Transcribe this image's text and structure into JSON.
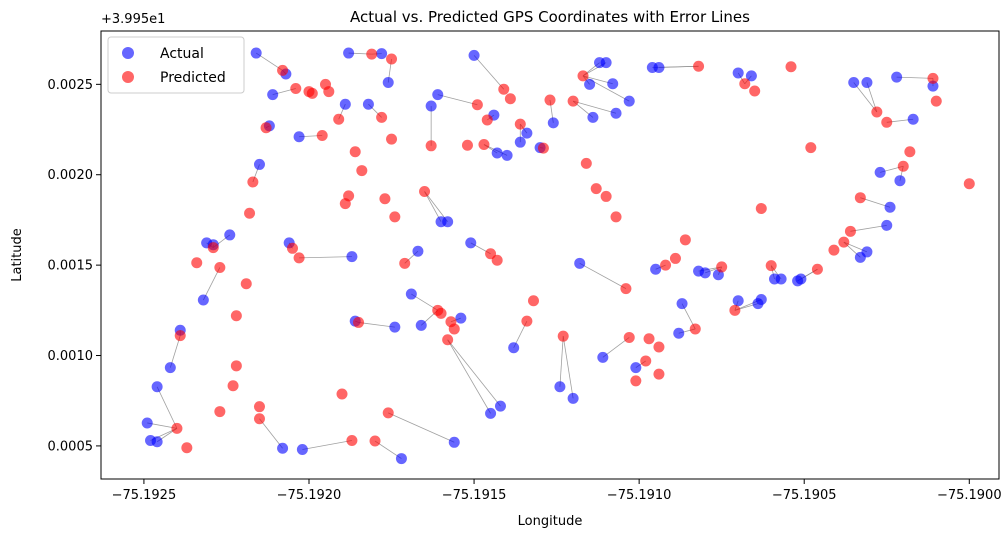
{
  "chart_data": {
    "type": "scatter",
    "title": "Actual vs. Predicted GPS Coordinates with Error Lines",
    "xlabel": "Longitude",
    "ylabel": "Latitude",
    "y_offset_text": "+3.995e1",
    "xlim": [
      -75.19263,
      -75.18991
    ],
    "ylim": [
      0.000317,
      0.002795
    ],
    "x_ticks": [
      -75.1925,
      -75.192,
      -75.1915,
      -75.191,
      -75.1905,
      -75.19
    ],
    "x_tick_labels": [
      "−75.1925",
      "−75.1920",
      "−75.1915",
      "−75.1910",
      "−75.1905",
      "−75.1900"
    ],
    "y_ticks": [
      0.0005,
      0.001,
      0.0015,
      0.002,
      0.0025
    ],
    "y_tick_labels": [
      "0.0005",
      "0.0010",
      "0.0015",
      "0.0020",
      "0.0025"
    ],
    "grid": false,
    "legend_position": "top-left",
    "series": [
      {
        "name": "Actual",
        "color": "#0000ff",
        "points": [
          [
            -75.19249,
            0.000627
          ],
          [
            -75.19248,
            0.00053
          ],
          [
            -75.19246,
            0.000523
          ],
          [
            -75.19246,
            0.000827
          ],
          [
            -75.19242,
            0.000933
          ],
          [
            -75.19239,
            0.00114
          ],
          [
            -75.19232,
            0.001307
          ],
          [
            -75.19231,
            0.001623
          ],
          [
            -75.19229,
            0.001613
          ],
          [
            -75.19224,
            0.001667
          ],
          [
            -75.19216,
            0.002673
          ],
          [
            -75.19215,
            0.002057
          ],
          [
            -75.19212,
            0.00227
          ],
          [
            -75.19211,
            0.002443
          ],
          [
            -75.19207,
            0.002557
          ],
          [
            -75.19206,
            0.001623
          ],
          [
            -75.19203,
            0.00221
          ],
          [
            -75.19208,
            0.000487
          ],
          [
            -75.19202,
            0.00048
          ],
          [
            -75.19189,
            0.00239
          ],
          [
            -75.19188,
            0.002673
          ],
          [
            -75.19187,
            0.001547
          ],
          [
            -75.19186,
            0.00119
          ],
          [
            -75.19182,
            0.00239
          ],
          [
            -75.19178,
            0.00267
          ],
          [
            -75.19176,
            0.00251
          ],
          [
            -75.19174,
            0.001157
          ],
          [
            -75.19172,
            0.00043
          ],
          [
            -75.19169,
            0.00134
          ],
          [
            -75.19167,
            0.001577
          ],
          [
            -75.19166,
            0.001167
          ],
          [
            -75.19163,
            0.00238
          ],
          [
            -75.19161,
            0.002443
          ],
          [
            -75.1916,
            0.00174
          ],
          [
            -75.19158,
            0.00174
          ],
          [
            -75.19156,
            0.00052
          ],
          [
            -75.19154,
            0.001207
          ],
          [
            -75.19151,
            0.001623
          ],
          [
            -75.1915,
            0.00266
          ],
          [
            -75.19145,
            0.00068
          ],
          [
            -75.19144,
            0.00233
          ],
          [
            -75.19143,
            0.00212
          ],
          [
            -75.19142,
            0.00072
          ],
          [
            -75.1914,
            0.002107
          ],
          [
            -75.19138,
            0.001043
          ],
          [
            -75.19136,
            0.00218
          ],
          [
            -75.19134,
            0.00223
          ],
          [
            -75.1913,
            0.00215
          ],
          [
            -75.19126,
            0.002287
          ],
          [
            -75.19124,
            0.000827
          ],
          [
            -75.1912,
            0.000763
          ],
          [
            -75.19118,
            0.00151
          ],
          [
            -75.19115,
            0.0025
          ],
          [
            -75.19114,
            0.002317
          ],
          [
            -75.19112,
            0.00262
          ],
          [
            -75.19111,
            0.00099
          ],
          [
            -75.1911,
            0.00262
          ],
          [
            -75.19108,
            0.002503
          ],
          [
            -75.19107,
            0.00234
          ],
          [
            -75.19103,
            0.002407
          ],
          [
            -75.19101,
            0.000933
          ],
          [
            -75.19096,
            0.002593
          ],
          [
            -75.19095,
            0.001477
          ],
          [
            -75.19094,
            0.002593
          ],
          [
            -75.19088,
            0.001123
          ],
          [
            -75.19087,
            0.001287
          ],
          [
            -75.19082,
            0.001467
          ],
          [
            -75.1908,
            0.001457
          ],
          [
            -75.19076,
            0.001447
          ],
          [
            -75.1907,
            0.002563
          ],
          [
            -75.1907,
            0.001303
          ],
          [
            -75.19066,
            0.002547
          ],
          [
            -75.19064,
            0.001287
          ],
          [
            -75.19063,
            0.00131
          ],
          [
            -75.19059,
            0.001423
          ],
          [
            -75.19057,
            0.001423
          ],
          [
            -75.19052,
            0.001413
          ],
          [
            -75.19051,
            0.001423
          ],
          [
            -75.19035,
            0.00251
          ],
          [
            -75.19033,
            0.001543
          ],
          [
            -75.19031,
            0.001573
          ],
          [
            -75.19031,
            0.00251
          ],
          [
            -75.19027,
            0.002013
          ],
          [
            -75.19025,
            0.00172
          ],
          [
            -75.19024,
            0.00182
          ],
          [
            -75.19022,
            0.00254
          ],
          [
            -75.19021,
            0.001967
          ],
          [
            -75.19017,
            0.002307
          ],
          [
            -75.19011,
            0.00249
          ]
        ]
      },
      {
        "name": "Predicted",
        "color": "#ff0000",
        "points": [
          [
            -75.1924,
            0.000597
          ],
          [
            -75.19237,
            0.00049
          ],
          [
            -75.19239,
            0.00111
          ],
          [
            -75.19234,
            0.001513
          ],
          [
            -75.19229,
            0.001597
          ],
          [
            -75.19227,
            0.001487
          ],
          [
            -75.19227,
            0.00069
          ],
          [
            -75.19223,
            0.000833
          ],
          [
            -75.19222,
            0.00122
          ],
          [
            -75.19222,
            0.000943
          ],
          [
            -75.19219,
            0.001397
          ],
          [
            -75.19218,
            0.001787
          ],
          [
            -75.19215,
            0.000717
          ],
          [
            -75.19215,
            0.00065
          ],
          [
            -75.19217,
            0.00196
          ],
          [
            -75.19213,
            0.00226
          ],
          [
            -75.19208,
            0.002577
          ],
          [
            -75.19205,
            0.001593
          ],
          [
            -75.19203,
            0.00154
          ],
          [
            -75.19204,
            0.002477
          ],
          [
            -75.192,
            0.00246
          ],
          [
            -75.19199,
            0.00245
          ],
          [
            -75.19196,
            0.002217
          ],
          [
            -75.19195,
            0.0025
          ],
          [
            -75.19194,
            0.00246
          ],
          [
            -75.19191,
            0.002307
          ],
          [
            -75.1919,
            0.000787
          ],
          [
            -75.19189,
            0.00184
          ],
          [
            -75.19188,
            0.001883
          ],
          [
            -75.19187,
            0.00053
          ],
          [
            -75.19186,
            0.002127
          ],
          [
            -75.19185,
            0.001183
          ],
          [
            -75.19184,
            0.002023
          ],
          [
            -75.1918,
            0.000527
          ],
          [
            -75.19181,
            0.002667
          ],
          [
            -75.19175,
            0.00264
          ],
          [
            -75.19178,
            0.002317
          ],
          [
            -75.19177,
            0.001867
          ],
          [
            -75.19176,
            0.000683
          ],
          [
            -75.19175,
            0.002197
          ],
          [
            -75.19174,
            0.001767
          ],
          [
            -75.19171,
            0.00151
          ],
          [
            -75.19165,
            0.001907
          ],
          [
            -75.19163,
            0.00216
          ],
          [
            -75.19161,
            0.00125
          ],
          [
            -75.1916,
            0.001233
          ],
          [
            -75.19157,
            0.001187
          ],
          [
            -75.19158,
            0.001087
          ],
          [
            -75.19156,
            0.001147
          ],
          [
            -75.19152,
            0.002163
          ],
          [
            -75.19149,
            0.002387
          ],
          [
            -75.19147,
            0.002167
          ],
          [
            -75.19146,
            0.002303
          ],
          [
            -75.19145,
            0.001563
          ],
          [
            -75.19143,
            0.001527
          ],
          [
            -75.19141,
            0.002473
          ],
          [
            -75.19139,
            0.00242
          ],
          [
            -75.19136,
            0.00228
          ],
          [
            -75.19134,
            0.00119
          ],
          [
            -75.19132,
            0.001303
          ],
          [
            -75.19129,
            0.002147
          ],
          [
            -75.19127,
            0.002413
          ],
          [
            -75.19123,
            0.001107
          ],
          [
            -75.1912,
            0.002407
          ],
          [
            -75.19117,
            0.002547
          ],
          [
            -75.19116,
            0.002063
          ],
          [
            -75.19113,
            0.001923
          ],
          [
            -75.1911,
            0.00188
          ],
          [
            -75.19107,
            0.001767
          ],
          [
            -75.19104,
            0.00137
          ],
          [
            -75.19103,
            0.0011
          ],
          [
            -75.19101,
            0.00086
          ],
          [
            -75.19098,
            0.00097
          ],
          [
            -75.19097,
            0.001093
          ],
          [
            -75.19094,
            0.000897
          ],
          [
            -75.19094,
            0.001047
          ],
          [
            -75.19092,
            0.0015
          ],
          [
            -75.19089,
            0.001537
          ],
          [
            -75.19086,
            0.00164
          ],
          [
            -75.19083,
            0.001147
          ],
          [
            -75.19082,
            0.0026
          ],
          [
            -75.19075,
            0.00149
          ],
          [
            -75.19071,
            0.00125
          ],
          [
            -75.19068,
            0.002503
          ],
          [
            -75.19065,
            0.002463
          ],
          [
            -75.19063,
            0.001813
          ],
          [
            -75.1906,
            0.001497
          ],
          [
            -75.19054,
            0.002597
          ],
          [
            -75.19048,
            0.00215
          ],
          [
            -75.19046,
            0.001477
          ],
          [
            -75.19041,
            0.001583
          ],
          [
            -75.19038,
            0.001627
          ],
          [
            -75.19036,
            0.001687
          ],
          [
            -75.19033,
            0.001873
          ],
          [
            -75.19028,
            0.002347
          ],
          [
            -75.19025,
            0.00229
          ],
          [
            -75.1902,
            0.002047
          ],
          [
            -75.19018,
            0.002127
          ],
          [
            -75.19011,
            0.002533
          ],
          [
            -75.1901,
            0.002407
          ],
          [
            -75.19,
            0.00195
          ]
        ]
      }
    ]
  }
}
